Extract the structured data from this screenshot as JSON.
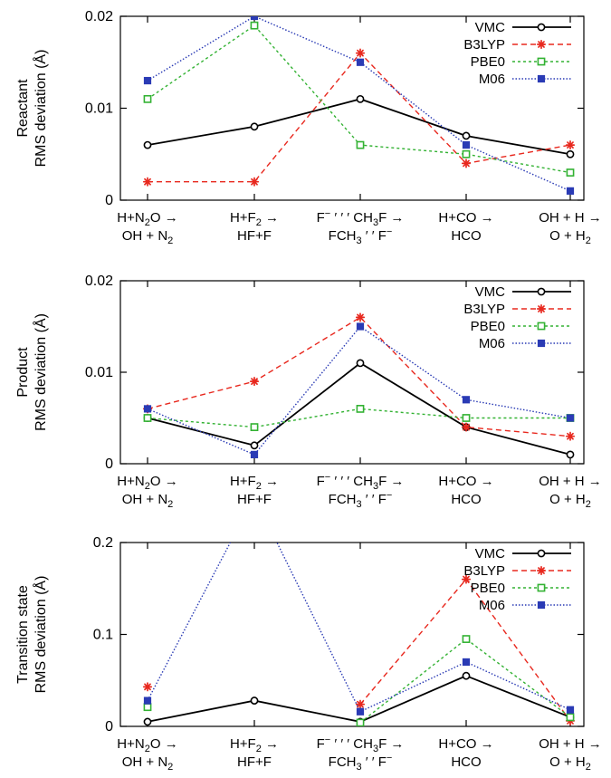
{
  "chart_data": [
    {
      "type": "line",
      "ylabel_lines": [
        "Reactant",
        "RMS deviation (Å)"
      ],
      "ylim": [
        0,
        0.02
      ],
      "yticks": [
        {
          "value": 0,
          "label": "0"
        },
        {
          "value": 0.01,
          "label": "0.01"
        },
        {
          "value": 0.02,
          "label": "0.02"
        }
      ],
      "categories": [
        {
          "top": [
            "H+N",
            "2",
            "O →"
          ],
          "bottom": [
            "OH + N",
            "2",
            ""
          ]
        },
        {
          "top": [
            "H+F",
            "2",
            " →"
          ],
          "bottom": [
            "HF+F",
            "",
            ""
          ]
        },
        {
          "top": [
            "F",
            "−",
            " ′ ′ ′ CH",
            "3",
            "F →"
          ],
          "bottom": [
            "FCH",
            "3",
            " ′ ′ F",
            "−"
          ]
        },
        {
          "top": [
            "H+CO →"
          ],
          "bottom": [
            "HCO"
          ]
        },
        {
          "top": [
            "OH + H →"
          ],
          "bottom": [
            "O + H",
            "2"
          ]
        }
      ],
      "legend_position": "top-right",
      "series": [
        {
          "name": "VMC",
          "color": "#000000",
          "marker": "open-circle",
          "dash": "",
          "values": [
            0.006,
            0.008,
            0.011,
            0.007,
            0.005
          ]
        },
        {
          "name": "B3LYP",
          "color": "#e8281e",
          "marker": "star",
          "dash": "6,4",
          "values": [
            0.002,
            0.002,
            0.016,
            0.004,
            0.006
          ]
        },
        {
          "name": "PBE0",
          "color": "#33b233",
          "marker": "open-square",
          "dash": "3,3",
          "values": [
            0.011,
            0.019,
            0.006,
            0.005,
            0.003
          ]
        },
        {
          "name": "M06",
          "color": "#2a3bb5",
          "marker": "filled-square",
          "dash": "1.5,2",
          "values": [
            0.013,
            0.02,
            0.015,
            0.006,
            0.001
          ]
        }
      ]
    },
    {
      "type": "line",
      "ylabel_lines": [
        "Product",
        "RMS deviation (Å)"
      ],
      "ylim": [
        0,
        0.02
      ],
      "yticks": [
        {
          "value": 0,
          "label": "0"
        },
        {
          "value": 0.01,
          "label": "0.01"
        },
        {
          "value": 0.02,
          "label": "0.02"
        }
      ],
      "categories": [
        {
          "top": [
            "H+N",
            "2",
            "O →"
          ],
          "bottom": [
            "OH + N",
            "2",
            ""
          ]
        },
        {
          "top": [
            "H+F",
            "2",
            " →"
          ],
          "bottom": [
            "HF+F",
            "",
            ""
          ]
        },
        {
          "top": [
            "F",
            "−",
            " ′ ′ ′ CH",
            "3",
            "F →"
          ],
          "bottom": [
            "FCH",
            "3",
            " ′ ′ F",
            "−"
          ]
        },
        {
          "top": [
            "H+CO →"
          ],
          "bottom": [
            "HCO"
          ]
        },
        {
          "top": [
            "OH + H →"
          ],
          "bottom": [
            "O + H",
            "2"
          ]
        }
      ],
      "legend_position": "top-right",
      "series": [
        {
          "name": "VMC",
          "color": "#000000",
          "marker": "open-circle",
          "dash": "",
          "values": [
            0.005,
            0.002,
            0.011,
            0.004,
            0.001
          ]
        },
        {
          "name": "B3LYP",
          "color": "#e8281e",
          "marker": "star",
          "dash": "6,4",
          "values": [
            0.006,
            0.009,
            0.016,
            0.004,
            0.003
          ]
        },
        {
          "name": "PBE0",
          "color": "#33b233",
          "marker": "open-square",
          "dash": "3,3",
          "values": [
            0.005,
            0.004,
            0.006,
            0.005,
            0.005
          ]
        },
        {
          "name": "M06",
          "color": "#2a3bb5",
          "marker": "filled-square",
          "dash": "1.5,2",
          "values": [
            0.006,
            0.001,
            0.015,
            0.007,
            0.005
          ]
        }
      ]
    },
    {
      "type": "line",
      "ylabel_lines": [
        "Transition state",
        "RMS deviation (Å)"
      ],
      "ylim": [
        0,
        0.2
      ],
      "yticks": [
        {
          "value": 0,
          "label": "0"
        },
        {
          "value": 0.1,
          "label": "0.1"
        },
        {
          "value": 0.2,
          "label": "0.2"
        }
      ],
      "categories": [
        {
          "top": [
            "H+N",
            "2",
            "O →"
          ],
          "bottom": [
            "OH + N",
            "2",
            ""
          ]
        },
        {
          "top": [
            "H+F",
            "2",
            " →"
          ],
          "bottom": [
            "HF+F",
            "",
            ""
          ]
        },
        {
          "top": [
            "F",
            "−",
            " ′ ′ ′ CH",
            "3",
            "F →"
          ],
          "bottom": [
            "FCH",
            "3",
            " ′ ′ F",
            "−"
          ]
        },
        {
          "top": [
            "H+CO →"
          ],
          "bottom": [
            "HCO"
          ]
        },
        {
          "top": [
            "OH + H →"
          ],
          "bottom": [
            "O + H",
            "2"
          ]
        }
      ],
      "legend_position": "top-right",
      "series": [
        {
          "name": "VMC",
          "color": "#000000",
          "marker": "open-circle",
          "dash": "",
          "values": [
            0.005,
            0.028,
            0.005,
            0.055,
            0.01
          ]
        },
        {
          "name": "B3LYP",
          "color": "#e8281e",
          "marker": "star",
          "dash": "6,4",
          "values": [
            0.043,
            null,
            0.024,
            0.16,
            0.006
          ]
        },
        {
          "name": "PBE0",
          "color": "#33b233",
          "marker": "open-square",
          "dash": "3,3",
          "values": [
            0.021,
            null,
            0.004,
            0.095,
            0.01
          ]
        },
        {
          "name": "M06",
          "color": "#2a3bb5",
          "marker": "filled-square",
          "dash": "1.5,2",
          "values": [
            0.028,
            0.25,
            0.016,
            0.07,
            0.018
          ]
        }
      ]
    }
  ]
}
